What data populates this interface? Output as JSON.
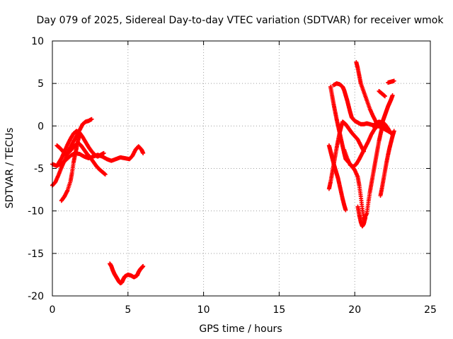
{
  "chart_data": {
    "type": "scatter",
    "title": "Day 079 of 2025, Sidereal Day-to-day VTEC variation (SDTVAR) for receiver wmok",
    "xlabel": "GPS time / hours",
    "ylabel": "SDTVAR / TECUs",
    "xlim": [
      0,
      25
    ],
    "ylim": [
      -20,
      10
    ],
    "xticks": [
      0,
      5,
      10,
      15,
      20,
      25
    ],
    "yticks": [
      -20,
      -15,
      -10,
      -5,
      0,
      5,
      10
    ],
    "grid": true,
    "legend": "none",
    "marker": "plus",
    "color": "#ff0000",
    "tracks": [
      [
        [
          0.0,
          -4.5
        ],
        [
          0.3,
          -4.7
        ],
        [
          0.6,
          -4.4
        ],
        [
          0.9,
          -4.0
        ],
        [
          1.2,
          -3.5
        ],
        [
          1.5,
          -3.2
        ],
        [
          1.8,
          -3.3
        ],
        [
          2.1,
          -3.6
        ],
        [
          2.4,
          -3.8
        ],
        [
          2.7,
          -3.6
        ],
        [
          3.0,
          -3.4
        ],
        [
          3.3,
          -3.6
        ],
        [
          3.6,
          -3.9
        ],
        [
          3.9,
          -4.1
        ],
        [
          4.2,
          -3.9
        ],
        [
          4.5,
          -3.7
        ],
        [
          4.8,
          -3.8
        ],
        [
          5.1,
          -3.9
        ],
        [
          5.3,
          -3.5
        ],
        [
          5.5,
          -2.8
        ],
        [
          5.7,
          -2.4
        ],
        [
          5.9,
          -2.8
        ],
        [
          6.0,
          -3.2
        ]
      ],
      [
        [
          0.0,
          -7.0
        ],
        [
          0.2,
          -6.6
        ],
        [
          0.4,
          -5.8
        ],
        [
          0.6,
          -4.9
        ],
        [
          0.8,
          -4.1
        ],
        [
          1.0,
          -3.2
        ],
        [
          1.2,
          -2.5
        ],
        [
          1.4,
          -1.8
        ],
        [
          1.6,
          -1.2
        ],
        [
          1.8,
          -0.5
        ],
        [
          2.0,
          0.2
        ],
        [
          2.2,
          0.5
        ],
        [
          2.4,
          0.6
        ],
        [
          2.6,
          0.8
        ]
      ],
      [
        [
          0.3,
          -2.3
        ],
        [
          0.5,
          -2.6
        ],
        [
          0.7,
          -3.0
        ],
        [
          0.9,
          -3.3
        ],
        [
          1.1,
          -3.1
        ],
        [
          1.3,
          -2.7
        ],
        [
          1.5,
          -2.3
        ],
        [
          1.7,
          -2.0
        ],
        [
          1.9,
          -2.3
        ],
        [
          2.1,
          -2.8
        ],
        [
          2.3,
          -3.3
        ],
        [
          2.5,
          -3.7
        ],
        [
          2.7,
          -4.2
        ],
        [
          2.9,
          -4.7
        ],
        [
          3.1,
          -5.1
        ],
        [
          3.3,
          -5.4
        ],
        [
          3.5,
          -5.7
        ]
      ],
      [
        [
          0.6,
          -8.8
        ],
        [
          0.8,
          -8.3
        ],
        [
          1.0,
          -7.6
        ],
        [
          1.2,
          -6.5
        ],
        [
          1.3,
          -5.5
        ],
        [
          1.4,
          -4.3
        ],
        [
          1.5,
          -3.4
        ],
        [
          1.6,
          -2.6
        ],
        [
          1.7,
          -1.7
        ],
        [
          1.8,
          -1.0
        ]
      ],
      [
        [
          0.4,
          -4.4
        ],
        [
          0.6,
          -3.8
        ],
        [
          0.8,
          -3.0
        ],
        [
          1.0,
          -2.2
        ],
        [
          1.2,
          -1.5
        ],
        [
          1.4,
          -0.9
        ],
        [
          1.6,
          -0.6
        ],
        [
          1.8,
          -0.8
        ],
        [
          2.0,
          -1.3
        ],
        [
          2.2,
          -1.9
        ],
        [
          2.4,
          -2.5
        ],
        [
          2.6,
          -3.0
        ],
        [
          2.8,
          -3.4
        ],
        [
          3.0,
          -3.6
        ],
        [
          3.2,
          -3.4
        ],
        [
          3.4,
          -3.2
        ]
      ],
      [
        [
          3.8,
          -16.2
        ],
        [
          3.9,
          -16.5
        ],
        [
          4.0,
          -17.0
        ],
        [
          4.1,
          -17.4
        ],
        [
          4.2,
          -17.7
        ],
        [
          4.3,
          -18.0
        ],
        [
          4.4,
          -18.3
        ],
        [
          4.5,
          -18.5
        ],
        [
          4.6,
          -18.4
        ],
        [
          4.7,
          -18.0
        ],
        [
          4.8,
          -17.7
        ],
        [
          5.0,
          -17.5
        ],
        [
          5.2,
          -17.6
        ],
        [
          5.4,
          -17.8
        ],
        [
          5.6,
          -17.6
        ],
        [
          5.7,
          -17.2
        ],
        [
          5.8,
          -16.9
        ],
        [
          5.9,
          -16.7
        ],
        [
          6.0,
          -16.5
        ]
      ],
      [
        [
          18.3,
          -7.4
        ],
        [
          18.4,
          -6.6
        ],
        [
          18.5,
          -5.6
        ],
        [
          18.6,
          -4.6
        ],
        [
          18.7,
          -3.6
        ],
        [
          18.8,
          -2.6
        ],
        [
          18.9,
          -1.7
        ],
        [
          19.0,
          -0.8
        ],
        [
          19.1,
          -0.1
        ],
        [
          19.2,
          0.5
        ],
        [
          19.4,
          0.2
        ],
        [
          19.6,
          -0.3
        ],
        [
          19.8,
          -0.8
        ],
        [
          20.0,
          -1.2
        ],
        [
          20.2,
          -1.6
        ],
        [
          20.4,
          -2.3
        ],
        [
          20.6,
          -3.0
        ]
      ],
      [
        [
          18.3,
          -2.3
        ],
        [
          18.4,
          -3.0
        ],
        [
          18.5,
          -3.7
        ],
        [
          18.6,
          -4.4
        ],
        [
          18.7,
          -5.0
        ],
        [
          18.8,
          -5.6
        ],
        [
          18.9,
          -6.2
        ],
        [
          19.0,
          -7.0
        ],
        [
          19.1,
          -7.8
        ],
        [
          19.2,
          -8.6
        ],
        [
          19.3,
          -9.3
        ],
        [
          19.4,
          -9.9
        ]
      ],
      [
        [
          18.4,
          4.6
        ],
        [
          18.5,
          3.6
        ],
        [
          18.6,
          2.6
        ],
        [
          18.7,
          1.7
        ],
        [
          18.8,
          0.8
        ],
        [
          18.9,
          0.0
        ],
        [
          19.0,
          -0.8
        ],
        [
          19.1,
          -1.6
        ],
        [
          19.2,
          -2.4
        ],
        [
          19.3,
          -3.2
        ],
        [
          19.4,
          -3.9
        ],
        [
          19.6,
          -4.3
        ],
        [
          19.8,
          -4.7
        ],
        [
          20.0,
          -5.2
        ],
        [
          20.2,
          -6.0
        ],
        [
          20.3,
          -7.0
        ],
        [
          20.4,
          -8.3
        ],
        [
          20.5,
          -9.7
        ],
        [
          20.6,
          -11.0
        ],
        [
          20.8,
          -10.3
        ],
        [
          20.9,
          -9.0
        ],
        [
          21.0,
          -7.8
        ],
        [
          21.1,
          -6.8
        ],
        [
          21.2,
          -5.8
        ],
        [
          21.3,
          -4.8
        ],
        [
          21.4,
          -3.8
        ],
        [
          21.5,
          -2.8
        ],
        [
          21.6,
          -1.8
        ],
        [
          21.7,
          -1.0
        ],
        [
          21.8,
          -0.2
        ],
        [
          21.9,
          0.3
        ],
        [
          22.0,
          0.0
        ]
      ],
      [
        [
          18.6,
          4.8
        ],
        [
          18.8,
          5.0
        ],
        [
          19.0,
          4.9
        ],
        [
          19.2,
          4.6
        ],
        [
          19.3,
          4.2
        ],
        [
          19.4,
          3.6
        ],
        [
          19.5,
          3.0
        ],
        [
          19.6,
          2.3
        ],
        [
          19.7,
          1.6
        ],
        [
          19.8,
          1.0
        ],
        [
          20.0,
          0.6
        ],
        [
          20.2,
          0.4
        ],
        [
          20.4,
          0.2
        ],
        [
          20.6,
          0.2
        ],
        [
          20.8,
          0.3
        ],
        [
          21.0,
          0.2
        ],
        [
          21.2,
          0.1
        ]
      ],
      [
        [
          20.1,
          7.5
        ],
        [
          20.2,
          6.8
        ],
        [
          20.3,
          5.9
        ],
        [
          20.4,
          5.0
        ],
        [
          20.6,
          4.0
        ],
        [
          20.8,
          3.0
        ],
        [
          21.0,
          2.0
        ],
        [
          21.2,
          1.2
        ],
        [
          21.4,
          0.5
        ],
        [
          21.6,
          0.1
        ],
        [
          21.8,
          -0.2
        ],
        [
          22.0,
          -0.4
        ],
        [
          22.2,
          -0.6
        ],
        [
          22.4,
          -0.8
        ]
      ],
      [
        [
          20.2,
          -9.5
        ],
        [
          20.3,
          -10.5
        ],
        [
          20.4,
          -11.3
        ],
        [
          20.5,
          -11.8
        ],
        [
          20.6,
          -11.5
        ],
        [
          20.7,
          -10.8
        ]
      ],
      [
        [
          19.3,
          -2.8
        ],
        [
          19.5,
          -3.8
        ],
        [
          19.7,
          -4.6
        ],
        [
          19.9,
          -4.8
        ],
        [
          20.1,
          -4.5
        ],
        [
          20.3,
          -3.9
        ],
        [
          20.5,
          -3.2
        ],
        [
          20.7,
          -2.5
        ],
        [
          20.9,
          -1.8
        ],
        [
          21.1,
          -1.0
        ],
        [
          21.3,
          -0.4
        ],
        [
          21.5,
          0.0
        ],
        [
          21.7,
          -0.1
        ]
      ],
      [
        [
          21.7,
          -8.2
        ],
        [
          21.8,
          -7.3
        ],
        [
          21.9,
          -6.3
        ],
        [
          22.0,
          -5.3
        ],
        [
          22.1,
          -4.3
        ],
        [
          22.2,
          -3.4
        ],
        [
          22.3,
          -2.6
        ],
        [
          22.4,
          -1.9
        ],
        [
          22.5,
          -1.2
        ],
        [
          22.6,
          -0.6
        ]
      ],
      [
        [
          21.6,
          4.1
        ],
        [
          21.8,
          3.8
        ],
        [
          22.0,
          3.5
        ]
      ],
      [
        [
          22.2,
          5.1
        ],
        [
          22.4,
          5.2
        ],
        [
          22.6,
          5.3
        ]
      ],
      [
        [
          21.8,
          0.3
        ],
        [
          21.9,
          0.8
        ],
        [
          22.0,
          1.3
        ],
        [
          22.1,
          1.8
        ],
        [
          22.2,
          2.3
        ],
        [
          22.3,
          2.7
        ],
        [
          22.4,
          3.1
        ],
        [
          22.5,
          3.6
        ]
      ],
      [
        [
          21.2,
          0.0
        ],
        [
          21.4,
          0.3
        ],
        [
          21.6,
          0.5
        ],
        [
          21.8,
          0.4
        ],
        [
          22.0,
          0.2
        ],
        [
          22.2,
          -0.3
        ],
        [
          22.4,
          -0.9
        ]
      ]
    ]
  }
}
